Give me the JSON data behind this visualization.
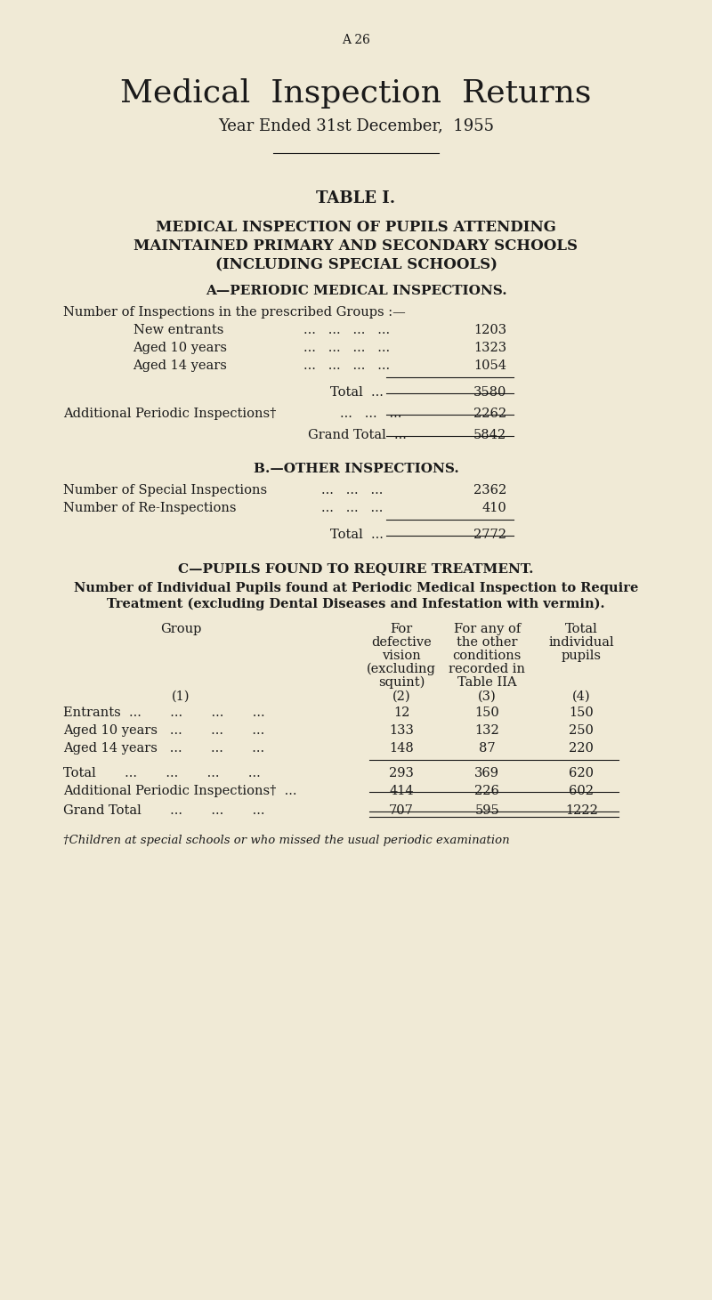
{
  "bg_color": "#f0ead6",
  "text_color": "#1a1a1a",
  "page_label": "A 26",
  "main_title": "Medical  Inspection  Returns",
  "subtitle": "Year Ended 31st December,  1955",
  "table_title": "TABLE I.",
  "table_subtitle1": "MEDICAL INSPECTION OF PUPILS ATTENDING",
  "table_subtitle2": "MAINTAINED PRIMARY AND SECONDARY SCHOOLS",
  "table_subtitle3": "(INCLUDING SPECIAL SCHOOLS)",
  "section_a_title": "A—PERIODIC MEDICAL INSPECTIONS.",
  "section_a_intro": "Number of Inspections in the prescribed Groups :—",
  "section_a_rows": [
    {
      "label": "New entrants",
      "value": "1203"
    },
    {
      "label": "Aged 10 years",
      "value": "1323"
    },
    {
      "label": "Aged 14 years",
      "value": "1054"
    }
  ],
  "section_a_total_value": "3580",
  "section_a_additional_label": "Additional Periodic Inspections†",
  "section_a_additional_value": "2262",
  "section_a_grand_value": "5842",
  "section_b_title": "B.—OTHER INSPECTIONS.",
  "section_b_rows": [
    {
      "label": "Number of Special Inspections",
      "value": "2362"
    },
    {
      "label": "Number of Re-Inspections",
      "value": "410"
    }
  ],
  "section_b_total_value": "2772",
  "section_c_title": "C—PUPILS FOUND TO REQUIRE TREATMENT.",
  "section_c_intro1": "Number of Individual Pupils found at Periodic Medical Inspection to Require",
  "section_c_intro2": "Treatment (excluding Dental Diseases and Infestation with vermin).",
  "col_h_group": "Group",
  "col_h_num": "(1)",
  "col_h2": [
    "For",
    "defective",
    "vision",
    "(excluding",
    "squint)",
    "(2)"
  ],
  "col_h3": [
    "For any of",
    "the other",
    "conditions",
    "recorded in",
    "Table IIA",
    "(3)"
  ],
  "col_h4": [
    "Total",
    "individual",
    "pupils",
    "(4)"
  ],
  "tc_rows": [
    [
      "Entrants  ...       ...       ...       ...",
      "12",
      "150",
      "150"
    ],
    [
      "Aged 10 years   ...       ...       ...",
      "133",
      "132",
      "250"
    ],
    [
      "Aged 14 years   ...       ...       ...",
      "148",
      "87",
      "220"
    ]
  ],
  "tc_total": [
    "Total       ...       ...       ...       ...",
    "293",
    "369",
    "620"
  ],
  "tc_additional": [
    "Additional Periodic Inspections†  ...",
    "414",
    "226",
    "602"
  ],
  "tc_grand": [
    "Grand Total       ...       ...       ...",
    "707",
    "595",
    "1222"
  ],
  "footnote": "†Children at special schools or who missed the usual periodic examination"
}
